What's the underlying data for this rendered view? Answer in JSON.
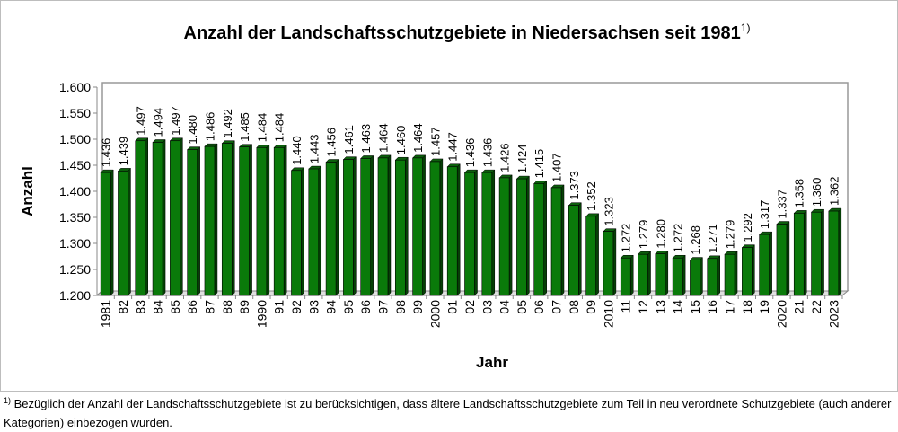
{
  "chart_data": {
    "type": "bar",
    "title": "Anzahl der Landschaftsschutzgebiete in Niedersachsen seit 1981",
    "title_footnote_mark": "1)",
    "xlabel": "Jahr",
    "ylabel": "Anzahl",
    "ylim": [
      1200,
      1600
    ],
    "yticks": [
      1200,
      1250,
      1300,
      1350,
      1400,
      1450,
      1500,
      1550,
      1600
    ],
    "ytick_labels": [
      "1.200",
      "1.250",
      "1.300",
      "1.350",
      "1.400",
      "1.450",
      "1.500",
      "1.550",
      "1.600"
    ],
    "grid": false,
    "bar_color": "#0a7a0a",
    "categories": [
      "1981",
      "82",
      "83",
      "84",
      "85",
      "86",
      "87",
      "88",
      "89",
      "1990",
      "91",
      "92",
      "93",
      "94",
      "95",
      "96",
      "97",
      "98",
      "99",
      "2000",
      "01",
      "02",
      "03",
      "04",
      "05",
      "06",
      "07",
      "08",
      "09",
      "2010",
      "11",
      "12",
      "13",
      "14",
      "15",
      "16",
      "17",
      "18",
      "19",
      "2020",
      "21",
      "22",
      "2023"
    ],
    "values": [
      1436,
      1439,
      1497,
      1494,
      1497,
      1480,
      1486,
      1492,
      1485,
      1484,
      1484,
      1440,
      1443,
      1456,
      1461,
      1463,
      1464,
      1460,
      1464,
      1457,
      1447,
      1436,
      1436,
      1426,
      1424,
      1415,
      1407,
      1373,
      1352,
      1323,
      1272,
      1279,
      1280,
      1272,
      1268,
      1271,
      1279,
      1292,
      1317,
      1337,
      1358,
      1360,
      1362
    ],
    "value_labels": [
      "1.436",
      "1.439",
      "1.497",
      "1.494",
      "1.497",
      "1.480",
      "1.486",
      "1.492",
      "1.485",
      "1.484",
      "1.484",
      "1.440",
      "1.443",
      "1.456",
      "1.461",
      "1.463",
      "1.464",
      "1.460",
      "1.464",
      "1.457",
      "1.447",
      "1.436",
      "1.436",
      "1.426",
      "1.424",
      "1.415",
      "1.407",
      "1.373",
      "1.352",
      "1.323",
      "1.272",
      "1.279",
      "1.280",
      "1.272",
      "1.268",
      "1.271",
      "1.279",
      "1.292",
      "1.317",
      "1.337",
      "1.358",
      "1.360",
      "1.362"
    ]
  },
  "footnote": {
    "mark": "1)",
    "text": " Bezüglich der Anzahl der Landschaftsschutzgebiete ist zu berücksichtigen, dass ältere Landschaftsschutzgebiete zum Teil in neu verordnete Schutzgebiete (auch anderer Kategorien) einbezogen wurden."
  }
}
